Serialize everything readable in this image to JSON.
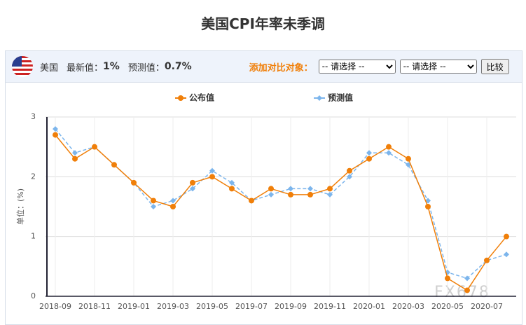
{
  "header": {
    "country": "美国",
    "latest_label": "最新值：",
    "latest_value": "1%",
    "forecast_label": "预测值：",
    "forecast_value": "0.7%",
    "compare_label": "添加对比对象：",
    "select_placeholder": "-- 请选择 --",
    "compare_button": "比较"
  },
  "watermark": "FX678",
  "chart_data": {
    "type": "line",
    "title": "美国CPI年率未季调",
    "ylabel": "单位：(%)",
    "categories": [
      "2018-09",
      null,
      "2018-11",
      null,
      "2019-01",
      null,
      "2019-03",
      null,
      "2019-05",
      null,
      "2019-07",
      null,
      "2019-09",
      null,
      "2019-11",
      null,
      "2020-01",
      null,
      "2020-03",
      null,
      "2020-05",
      null,
      "2020-07",
      null
    ],
    "series": [
      {
        "name": "公布值",
        "color": "#f07f09",
        "marker": "circle",
        "dashed": false,
        "values": [
          2.7,
          2.3,
          2.5,
          2.2,
          1.9,
          1.6,
          1.5,
          1.9,
          2.0,
          1.8,
          1.6,
          1.8,
          1.7,
          1.7,
          1.8,
          2.1,
          2.3,
          2.5,
          2.3,
          1.5,
          0.3,
          0.1,
          0.6,
          1.0
        ]
      },
      {
        "name": "预测值",
        "color": "#7cb5ec",
        "marker": "diamond",
        "dashed": true,
        "values": [
          2.8,
          2.4,
          2.5,
          2.2,
          1.9,
          1.5,
          1.6,
          1.8,
          2.1,
          1.9,
          1.6,
          1.7,
          1.8,
          1.8,
          1.7,
          2.0,
          2.4,
          2.4,
          2.2,
          1.6,
          0.4,
          0.3,
          0.6,
          0.7
        ]
      }
    ],
    "ylim": [
      0,
      3
    ],
    "yticks": [
      0,
      1,
      2,
      3
    ],
    "grid": true
  }
}
